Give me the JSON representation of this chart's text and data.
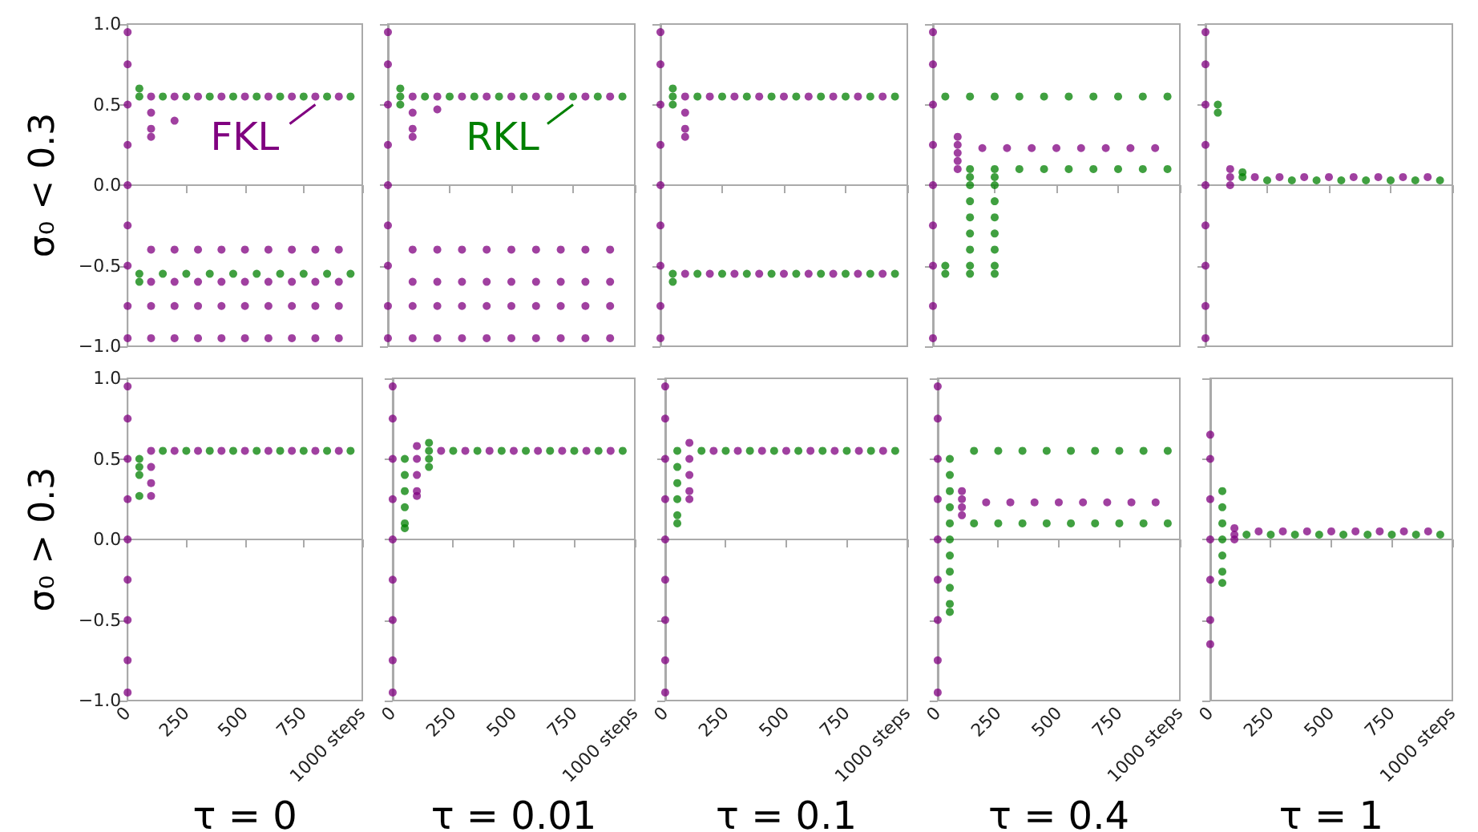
{
  "chart_data": [
    {
      "type": "scatter",
      "ylabel": "σ₀ < 0.3",
      "xlim": [
        0,
        1000
      ],
      "ylim": [
        -1,
        1
      ],
      "xticks": [
        {
          "value": 0,
          "label": null
        },
        {
          "value": 250,
          "label": null
        },
        {
          "value": 500,
          "label": null
        },
        {
          "value": 750,
          "label": null
        },
        {
          "value": 1000,
          "label": null
        }
      ],
      "yticks": [
        {
          "value": -1,
          "label": "−1.0"
        },
        {
          "value": -0.5,
          "label": "−0.5"
        },
        {
          "value": 0,
          "label": "0.0"
        },
        {
          "value": 0.5,
          "label": "0.5"
        },
        {
          "value": 1,
          "label": "1.0"
        }
      ],
      "tick_labels": "y",
      "marker": "circle",
      "annotations": [
        {
          "text": "FKL",
          "x": 800,
          "y": 0.5
        }
      ],
      "series": [
        {
          "color": "#800080",
          "x": [
            0,
            0,
            0,
            0,
            0,
            0,
            0,
            0,
            0,
            100,
            100,
            100,
            100,
            100,
            100,
            100,
            100,
            200,
            200,
            200,
            200,
            200,
            200,
            300,
            300,
            300,
            300,
            300,
            400,
            400,
            400,
            400,
            400,
            500,
            500,
            500,
            500,
            500,
            600,
            600,
            600,
            600,
            600,
            700,
            700,
            700,
            700,
            700,
            800,
            800,
            800,
            800,
            800,
            900,
            900,
            900,
            900,
            900
          ],
          "values": [
            -0.95,
            -0.75,
            -0.5,
            -0.25,
            0,
            0.25,
            0.5,
            0.75,
            0.95,
            0.55,
            0.45,
            0.35,
            0.3,
            -0.4,
            -0.6,
            -0.75,
            -0.95,
            0.55,
            0.4,
            -0.4,
            -0.6,
            -0.75,
            -0.95,
            0.55,
            -0.4,
            -0.6,
            -0.75,
            -0.95,
            0.55,
            -0.4,
            -0.6,
            -0.75,
            -0.95,
            0.55,
            -0.4,
            -0.6,
            -0.75,
            -0.95,
            0.55,
            -0.4,
            -0.6,
            -0.75,
            -0.95,
            0.55,
            -0.4,
            -0.6,
            -0.75,
            -0.95,
            0.55,
            -0.4,
            -0.6,
            -0.75,
            -0.95,
            0.55,
            -0.4,
            -0.6,
            -0.75,
            -0.95
          ]
        },
        {
          "color": "#008000",
          "x": [
            50,
            50,
            50,
            50,
            150,
            150,
            250,
            250,
            350,
            350,
            450,
            450,
            550,
            550,
            650,
            650,
            750,
            750,
            850,
            850,
            950,
            950
          ],
          "values": [
            0.6,
            0.55,
            -0.55,
            -0.6,
            0.55,
            -0.55,
            0.55,
            -0.55,
            0.55,
            -0.55,
            0.55,
            -0.55,
            0.55,
            -0.55,
            0.55,
            -0.55,
            0.55,
            -0.55,
            0.55,
            -0.55,
            0.55,
            -0.55
          ]
        }
      ]
    },
    {
      "type": "scatter",
      "xlim": [
        0,
        1000
      ],
      "ylim": [
        -1,
        1
      ],
      "xticks": [
        {
          "value": 0,
          "label": null
        },
        {
          "value": 250,
          "label": null
        },
        {
          "value": 500,
          "label": null
        },
        {
          "value": 750,
          "label": null
        },
        {
          "value": 1000,
          "label": null
        }
      ],
      "yticks": [
        {
          "value": -1,
          "label": null
        },
        {
          "value": -0.5,
          "label": null
        },
        {
          "value": 0,
          "label": null
        },
        {
          "value": 0.5,
          "label": null
        },
        {
          "value": 1,
          "label": null
        }
      ],
      "tick_labels": false,
      "marker": "circle",
      "annotations": [
        {
          "text": "RKL",
          "x": 750,
          "y": 0.5
        }
      ],
      "series": [
        {
          "color": "#800080",
          "x": [
            0,
            0,
            0,
            0,
            0,
            0,
            0,
            0,
            0,
            100,
            100,
            100,
            100,
            100,
            100,
            100,
            100,
            200,
            200,
            200,
            200,
            200,
            200,
            300,
            300,
            300,
            300,
            300,
            400,
            400,
            400,
            400,
            400,
            500,
            500,
            500,
            500,
            500,
            600,
            600,
            600,
            600,
            600,
            700,
            700,
            700,
            700,
            700,
            800,
            800,
            800,
            800,
            800,
            900,
            900,
            900,
            900,
            900
          ],
          "values": [
            -0.95,
            -0.75,
            -0.5,
            -0.25,
            0,
            0.25,
            0.5,
            0.75,
            0.95,
            0.55,
            0.45,
            0.35,
            0.3,
            -0.4,
            -0.6,
            -0.75,
            -0.95,
            0.55,
            0.47,
            -0.4,
            -0.6,
            -0.75,
            -0.95,
            0.55,
            -0.4,
            -0.6,
            -0.75,
            -0.95,
            0.55,
            -0.4,
            -0.6,
            -0.75,
            -0.95,
            0.55,
            -0.4,
            -0.6,
            -0.75,
            -0.95,
            0.55,
            -0.4,
            -0.6,
            -0.75,
            -0.95,
            0.55,
            -0.4,
            -0.6,
            -0.75,
            -0.95,
            0.55,
            -0.4,
            -0.6,
            -0.75,
            -0.95,
            0.55,
            -0.4,
            -0.6,
            -0.75,
            -0.95
          ]
        },
        {
          "color": "#008000",
          "x": [
            50,
            50,
            50,
            150,
            250,
            350,
            450,
            550,
            650,
            750,
            850,
            950
          ],
          "values": [
            0.6,
            0.55,
            0.5,
            0.55,
            0.55,
            0.55,
            0.55,
            0.55,
            0.55,
            0.55,
            0.55,
            0.55
          ]
        }
      ]
    },
    {
      "type": "scatter",
      "xlim": [
        0,
        1000
      ],
      "ylim": [
        -1,
        1
      ],
      "xticks": [
        {
          "value": 0,
          "label": null
        },
        {
          "value": 250,
          "label": null
        },
        {
          "value": 500,
          "label": null
        },
        {
          "value": 750,
          "label": null
        },
        {
          "value": 1000,
          "label": null
        }
      ],
      "yticks": [
        {
          "value": -1,
          "label": null
        },
        {
          "value": -0.5,
          "label": null
        },
        {
          "value": 0,
          "label": null
        },
        {
          "value": 0.5,
          "label": null
        },
        {
          "value": 1,
          "label": null
        }
      ],
      "tick_labels": false,
      "marker": "circle",
      "series": [
        {
          "color": "#800080",
          "x": [
            0,
            0,
            0,
            0,
            0,
            0,
            0,
            0,
            0,
            100,
            100,
            100,
            100,
            100,
            200,
            200,
            300,
            300,
            400,
            400,
            500,
            500,
            600,
            600,
            700,
            700,
            800,
            800,
            900,
            900
          ],
          "values": [
            -0.95,
            -0.75,
            -0.5,
            -0.25,
            0,
            0.25,
            0.5,
            0.75,
            0.95,
            0.55,
            0.45,
            0.35,
            0.3,
            -0.55,
            0.55,
            -0.55,
            0.55,
            -0.55,
            0.55,
            -0.55,
            0.55,
            -0.55,
            0.55,
            -0.55,
            0.55,
            -0.55,
            0.55,
            -0.55,
            0.55,
            -0.55
          ]
        },
        {
          "color": "#008000",
          "x": [
            50,
            50,
            50,
            50,
            50,
            150,
            150,
            250,
            250,
            350,
            350,
            450,
            450,
            550,
            550,
            650,
            650,
            750,
            750,
            850,
            850,
            950,
            950
          ],
          "values": [
            0.6,
            0.55,
            0.5,
            -0.55,
            -0.6,
            0.55,
            -0.55,
            0.55,
            -0.55,
            0.55,
            -0.55,
            0.55,
            -0.55,
            0.55,
            -0.55,
            0.55,
            -0.55,
            0.55,
            -0.55,
            0.55,
            -0.55,
            0.55,
            -0.55
          ]
        }
      ]
    },
    {
      "type": "scatter",
      "xlim": [
        0,
        1000
      ],
      "ylim": [
        -1,
        1
      ],
      "xticks": [
        {
          "value": 0,
          "label": null
        },
        {
          "value": 250,
          "label": null
        },
        {
          "value": 500,
          "label": null
        },
        {
          "value": 750,
          "label": null
        },
        {
          "value": 1000,
          "label": null
        }
      ],
      "yticks": [
        {
          "value": -1,
          "label": null
        },
        {
          "value": -0.5,
          "label": null
        },
        {
          "value": 0,
          "label": null
        },
        {
          "value": 0.5,
          "label": null
        },
        {
          "value": 1,
          "label": null
        }
      ],
      "tick_labels": false,
      "marker": "circle",
      "series": [
        {
          "color": "#800080",
          "x": [
            0,
            0,
            0,
            0,
            0,
            0,
            0,
            0,
            0,
            100,
            100,
            100,
            100,
            100,
            200,
            300,
            400,
            500,
            600,
            700,
            800,
            900
          ],
          "values": [
            -0.95,
            -0.75,
            -0.5,
            -0.25,
            0,
            0.25,
            0.5,
            0.75,
            0.95,
            0.3,
            0.25,
            0.2,
            0.15,
            0.1,
            0.23,
            0.23,
            0.23,
            0.23,
            0.23,
            0.23,
            0.23,
            0.23
          ]
        },
        {
          "color": "#008000",
          "x": [
            50,
            50,
            50,
            150,
            150,
            150,
            150,
            150,
            150,
            150,
            150,
            150,
            150,
            250,
            250,
            250,
            250,
            250,
            250,
            250,
            250,
            250,
            250,
            350,
            350,
            450,
            450,
            550,
            550,
            650,
            650,
            750,
            750,
            850,
            850,
            950,
            950
          ],
          "values": [
            0.55,
            -0.5,
            -0.55,
            0.55,
            0.1,
            0.05,
            0,
            -0.1,
            -0.2,
            -0.3,
            -0.4,
            -0.5,
            -0.55,
            0.55,
            0.1,
            0.05,
            0,
            -0.1,
            -0.2,
            -0.3,
            -0.4,
            -0.5,
            -0.55,
            0.55,
            0.1,
            0.55,
            0.1,
            0.55,
            0.1,
            0.55,
            0.1,
            0.55,
            0.1,
            0.55,
            0.1,
            0.55,
            0.1
          ]
        }
      ]
    },
    {
      "type": "scatter",
      "xlim": [
        0,
        1000
      ],
      "ylim": [
        -1,
        1
      ],
      "xticks": [
        {
          "value": 0,
          "label": null
        },
        {
          "value": 250,
          "label": null
        },
        {
          "value": 500,
          "label": null
        },
        {
          "value": 750,
          "label": null
        },
        {
          "value": 1000,
          "label": null
        }
      ],
      "yticks": [
        {
          "value": -1,
          "label": null
        },
        {
          "value": -0.5,
          "label": null
        },
        {
          "value": 0,
          "label": null
        },
        {
          "value": 0.5,
          "label": null
        },
        {
          "value": 1,
          "label": null
        }
      ],
      "tick_labels": false,
      "marker": "circle",
      "series": [
        {
          "color": "#800080",
          "x": [
            0,
            0,
            0,
            0,
            0,
            0,
            0,
            0,
            0,
            100,
            100,
            100,
            200,
            300,
            400,
            500,
            600,
            700,
            800,
            900
          ],
          "values": [
            -0.95,
            -0.75,
            -0.5,
            -0.25,
            0,
            0.25,
            0.5,
            0.75,
            0.95,
            0.1,
            0.05,
            0,
            0.05,
            0.05,
            0.05,
            0.05,
            0.05,
            0.05,
            0.05,
            0.05
          ]
        },
        {
          "color": "#008000",
          "x": [
            50,
            50,
            150,
            150,
            250,
            350,
            450,
            550,
            650,
            750,
            850,
            950
          ],
          "values": [
            0.5,
            0.45,
            0.08,
            0.05,
            0.03,
            0.03,
            0.03,
            0.03,
            0.03,
            0.03,
            0.03,
            0.03
          ]
        }
      ]
    },
    {
      "type": "scatter",
      "ylabel": "σ₀ > 0.3",
      "xlabel": "τ = 0",
      "xlim": [
        0,
        1000
      ],
      "ylim": [
        -1,
        1
      ],
      "xticks": [
        0,
        250,
        500,
        750,
        {
          "value": 1000,
          "label": "1000 steps"
        }
      ],
      "yticks": [
        {
          "value": -1,
          "label": "−1.0"
        },
        {
          "value": -0.5,
          "label": "−0.5"
        },
        {
          "value": 0,
          "label": "0.0"
        },
        {
          "value": 0.5,
          "label": "0.5"
        },
        {
          "value": 1,
          "label": "1.0"
        }
      ],
      "marker": "circle",
      "series": [
        {
          "color": "#800080",
          "x": [
            0,
            0,
            0,
            0,
            0,
            0,
            0,
            0,
            0,
            100,
            100,
            100,
            100,
            200,
            300,
            400,
            500,
            600,
            700,
            800,
            900
          ],
          "values": [
            -0.95,
            -0.75,
            -0.5,
            -0.25,
            0,
            0.25,
            0.5,
            0.75,
            0.95,
            0.55,
            0.45,
            0.35,
            0.27,
            0.55,
            0.55,
            0.55,
            0.55,
            0.55,
            0.55,
            0.55,
            0.55
          ]
        },
        {
          "color": "#008000",
          "x": [
            50,
            50,
            50,
            50,
            150,
            250,
            350,
            450,
            550,
            650,
            750,
            850,
            950
          ],
          "values": [
            0.5,
            0.45,
            0.4,
            0.27,
            0.55,
            0.55,
            0.55,
            0.55,
            0.55,
            0.55,
            0.55,
            0.55,
            0.55
          ]
        }
      ]
    },
    {
      "type": "scatter",
      "xlabel": "τ = 0.01",
      "xlim": [
        0,
        1000
      ],
      "ylim": [
        -1,
        1
      ],
      "xticks": [
        0,
        250,
        500,
        750,
        {
          "value": 1000,
          "label": "1000 steps"
        }
      ],
      "yticks": [
        {
          "value": -1,
          "label": null
        },
        {
          "value": -0.5,
          "label": null
        },
        {
          "value": 0,
          "label": null
        },
        {
          "value": 0.5,
          "label": null
        },
        {
          "value": 1,
          "label": null
        }
      ],
      "tick_labels": "x",
      "marker": "circle",
      "series": [
        {
          "color": "#800080",
          "x": [
            0,
            0,
            0,
            0,
            0,
            0,
            0,
            0,
            0,
            100,
            100,
            100,
            100,
            100,
            200,
            300,
            400,
            500,
            600,
            700,
            800,
            900
          ],
          "values": [
            -0.95,
            -0.75,
            -0.5,
            -0.25,
            0,
            0.25,
            0.5,
            0.75,
            0.95,
            0.58,
            0.5,
            0.4,
            0.3,
            0.27,
            0.55,
            0.55,
            0.55,
            0.55,
            0.55,
            0.55,
            0.55,
            0.55
          ]
        },
        {
          "color": "#008000",
          "x": [
            50,
            50,
            50,
            50,
            50,
            50,
            150,
            150,
            150,
            150,
            250,
            350,
            450,
            550,
            650,
            750,
            850,
            950
          ],
          "values": [
            0.5,
            0.4,
            0.3,
            0.2,
            0.1,
            0.07,
            0.6,
            0.55,
            0.5,
            0.45,
            0.55,
            0.55,
            0.55,
            0.55,
            0.55,
            0.55,
            0.55,
            0.55
          ]
        }
      ]
    },
    {
      "type": "scatter",
      "xlabel": "τ = 0.1",
      "xlim": [
        0,
        1000
      ],
      "ylim": [
        -1,
        1
      ],
      "xticks": [
        0,
        250,
        500,
        750,
        {
          "value": 1000,
          "label": "1000 steps"
        }
      ],
      "yticks": [
        {
          "value": -1,
          "label": null
        },
        {
          "value": -0.5,
          "label": null
        },
        {
          "value": 0,
          "label": null
        },
        {
          "value": 0.5,
          "label": null
        },
        {
          "value": 1,
          "label": null
        }
      ],
      "tick_labels": "x",
      "marker": "circle",
      "series": [
        {
          "color": "#800080",
          "x": [
            0,
            0,
            0,
            0,
            0,
            0,
            0,
            0,
            0,
            100,
            100,
            100,
            100,
            100,
            200,
            300,
            400,
            500,
            600,
            700,
            800,
            900
          ],
          "values": [
            -0.95,
            -0.75,
            -0.5,
            -0.25,
            0,
            0.25,
            0.5,
            0.75,
            0.95,
            0.6,
            0.5,
            0.4,
            0.3,
            0.25,
            0.55,
            0.55,
            0.55,
            0.55,
            0.55,
            0.55,
            0.55,
            0.55
          ]
        },
        {
          "color": "#008000",
          "x": [
            50,
            50,
            50,
            50,
            50,
            50,
            150,
            250,
            350,
            450,
            550,
            650,
            750,
            850,
            950
          ],
          "values": [
            0.55,
            0.45,
            0.35,
            0.25,
            0.15,
            0.1,
            0.55,
            0.55,
            0.55,
            0.55,
            0.55,
            0.55,
            0.55,
            0.55,
            0.55
          ]
        }
      ]
    },
    {
      "type": "scatter",
      "xlabel": "τ = 0.4",
      "xlim": [
        0,
        1000
      ],
      "ylim": [
        -1,
        1
      ],
      "xticks": [
        0,
        250,
        500,
        750,
        {
          "value": 1000,
          "label": "1000 steps"
        }
      ],
      "yticks": [
        {
          "value": -1,
          "label": null
        },
        {
          "value": -0.5,
          "label": null
        },
        {
          "value": 0,
          "label": null
        },
        {
          "value": 0.5,
          "label": null
        },
        {
          "value": 1,
          "label": null
        }
      ],
      "tick_labels": "x",
      "marker": "circle",
      "series": [
        {
          "color": "#800080",
          "x": [
            0,
            0,
            0,
            0,
            0,
            0,
            0,
            0,
            0,
            100,
            100,
            100,
            100,
            200,
            300,
            400,
            500,
            600,
            700,
            800,
            900
          ],
          "values": [
            -0.95,
            -0.75,
            -0.5,
            -0.25,
            0,
            0.25,
            0.5,
            0.75,
            0.95,
            0.3,
            0.25,
            0.2,
            0.15,
            0.23,
            0.23,
            0.23,
            0.23,
            0.23,
            0.23,
            0.23,
            0.23
          ]
        },
        {
          "color": "#008000",
          "x": [
            50,
            50,
            50,
            50,
            50,
            50,
            50,
            50,
            50,
            50,
            50,
            150,
            150,
            250,
            250,
            350,
            350,
            450,
            450,
            550,
            550,
            650,
            650,
            750,
            750,
            850,
            850,
            950,
            950
          ],
          "values": [
            0.5,
            0.4,
            0.3,
            0.2,
            0.1,
            0,
            -0.1,
            -0.2,
            -0.3,
            -0.4,
            -0.45,
            0.55,
            0.1,
            0.55,
            0.1,
            0.55,
            0.1,
            0.55,
            0.1,
            0.55,
            0.1,
            0.55,
            0.1,
            0.55,
            0.1,
            0.55,
            0.1,
            0.55,
            0.1
          ]
        }
      ]
    },
    {
      "type": "scatter",
      "xlabel": "τ = 1",
      "xlim": [
        0,
        1000
      ],
      "ylim": [
        -1,
        1
      ],
      "xticks": [
        0,
        250,
        500,
        750,
        {
          "value": 1000,
          "label": "1000 steps"
        }
      ],
      "yticks": [
        {
          "value": -1,
          "label": null
        },
        {
          "value": -0.5,
          "label": null
        },
        {
          "value": 0,
          "label": null
        },
        {
          "value": 0.5,
          "label": null
        },
        {
          "value": 1,
          "label": null
        }
      ],
      "tick_labels": "x",
      "marker": "circle",
      "series": [
        {
          "color": "#800080",
          "x": [
            0,
            0,
            0,
            0,
            0,
            0,
            0,
            100,
            100,
            100,
            200,
            300,
            400,
            500,
            600,
            700,
            800,
            900
          ],
          "values": [
            -0.65,
            -0.5,
            -0.25,
            0,
            0.25,
            0.5,
            0.65,
            0.07,
            0.03,
            0,
            0.05,
            0.05,
            0.05,
            0.05,
            0.05,
            0.05,
            0.05,
            0.05
          ]
        },
        {
          "color": "#008000",
          "x": [
            50,
            50,
            50,
            50,
            50,
            50,
            50,
            150,
            250,
            350,
            450,
            550,
            650,
            750,
            850,
            950
          ],
          "values": [
            0.3,
            0.2,
            0.1,
            0,
            -0.1,
            -0.2,
            -0.27,
            0.03,
            0.03,
            0.03,
            0.03,
            0.03,
            0.03,
            0.03,
            0.03,
            0.03
          ]
        }
      ]
    }
  ]
}
